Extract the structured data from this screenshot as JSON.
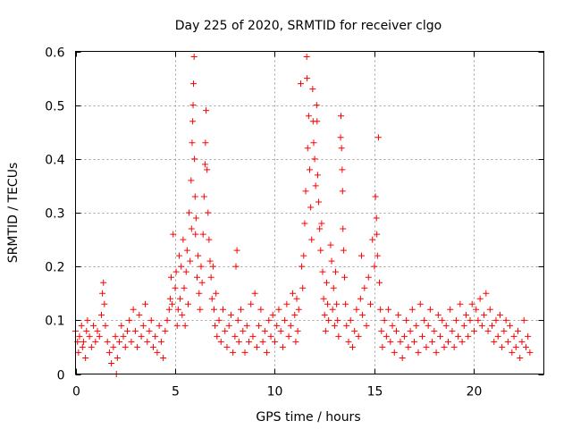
{
  "chart_data": {
    "type": "scatter",
    "title": "Day 225 of 2020, SRMTID for receiver clgo",
    "xlabel": "GPS time / hours",
    "ylabel": "SRMTID / TECUs",
    "xlim": [
      0,
      23.5
    ],
    "ylim": [
      0,
      0.6
    ],
    "x_ticks": [
      0,
      5,
      10,
      15,
      20
    ],
    "x_tick_labels": [
      "0",
      "5",
      "10",
      "15",
      "20"
    ],
    "y_ticks": [
      0,
      0.1,
      0.2,
      0.3,
      0.4,
      0.5,
      0.6
    ],
    "y_tick_labels": [
      "0",
      "0.1",
      "0.2",
      "0.3",
      "0.4",
      "0.5",
      "0.6"
    ],
    "grid": true,
    "marker": "plus",
    "marker_color": "#ff0000",
    "series": [
      {
        "name": "SRMTID",
        "points": [
          [
            0.0,
            0.08
          ],
          [
            0.1,
            0.06
          ],
          [
            0.15,
            0.04
          ],
          [
            0.2,
            0.07
          ],
          [
            0.3,
            0.09
          ],
          [
            0.35,
            0.05
          ],
          [
            0.4,
            0.06
          ],
          [
            0.5,
            0.03
          ],
          [
            0.55,
            0.08
          ],
          [
            0.6,
            0.1
          ],
          [
            0.7,
            0.07
          ],
          [
            0.8,
            0.05
          ],
          [
            0.9,
            0.09
          ],
          [
            1.0,
            0.06
          ],
          [
            1.1,
            0.08
          ],
          [
            1.2,
            0.07
          ],
          [
            1.3,
            0.11
          ],
          [
            1.35,
            0.15
          ],
          [
            1.4,
            0.17
          ],
          [
            1.45,
            0.13
          ],
          [
            1.5,
            0.09
          ],
          [
            1.6,
            0.06
          ],
          [
            1.7,
            0.04
          ],
          [
            1.8,
            0.02
          ],
          [
            1.9,
            0.05
          ],
          [
            2.0,
            0.07
          ],
          [
            2.05,
            0.0
          ],
          [
            2.1,
            0.03
          ],
          [
            2.2,
            0.06
          ],
          [
            2.3,
            0.09
          ],
          [
            2.4,
            0.07
          ],
          [
            2.5,
            0.05
          ],
          [
            2.6,
            0.08
          ],
          [
            2.7,
            0.1
          ],
          [
            2.8,
            0.06
          ],
          [
            2.9,
            0.12
          ],
          [
            3.0,
            0.08
          ],
          [
            3.1,
            0.05
          ],
          [
            3.2,
            0.11
          ],
          [
            3.3,
            0.07
          ],
          [
            3.4,
            0.09
          ],
          [
            3.5,
            0.13
          ],
          [
            3.6,
            0.06
          ],
          [
            3.7,
            0.08
          ],
          [
            3.8,
            0.1
          ],
          [
            3.9,
            0.05
          ],
          [
            4.0,
            0.07
          ],
          [
            4.1,
            0.04
          ],
          [
            4.2,
            0.09
          ],
          [
            4.3,
            0.06
          ],
          [
            4.4,
            0.03
          ],
          [
            4.5,
            0.08
          ],
          [
            4.6,
            0.1
          ],
          [
            4.7,
            0.12
          ],
          [
            4.75,
            0.14
          ],
          [
            4.8,
            0.18
          ],
          [
            4.85,
            0.13
          ],
          [
            4.9,
            0.26
          ],
          [
            5.0,
            0.16
          ],
          [
            5.05,
            0.19
          ],
          [
            5.1,
            0.09
          ],
          [
            5.15,
            0.12
          ],
          [
            5.2,
            0.22
          ],
          [
            5.25,
            0.14
          ],
          [
            5.3,
            0.2
          ],
          [
            5.35,
            0.11
          ],
          [
            5.4,
            0.25
          ],
          [
            5.45,
            0.16
          ],
          [
            5.5,
            0.09
          ],
          [
            5.55,
            0.19
          ],
          [
            5.6,
            0.23
          ],
          [
            5.65,
            0.13
          ],
          [
            5.7,
            0.3
          ],
          [
            5.75,
            0.21
          ],
          [
            5.8,
            0.36
          ],
          [
            5.82,
            0.27
          ],
          [
            5.85,
            0.43
          ],
          [
            5.88,
            0.47
          ],
          [
            5.9,
            0.5
          ],
          [
            5.92,
            0.54
          ],
          [
            5.95,
            0.59
          ],
          [
            5.97,
            0.4
          ],
          [
            6.0,
            0.33
          ],
          [
            6.02,
            0.26
          ],
          [
            6.05,
            0.29
          ],
          [
            6.1,
            0.18
          ],
          [
            6.15,
            0.22
          ],
          [
            6.2,
            0.15
          ],
          [
            6.25,
            0.12
          ],
          [
            6.3,
            0.2
          ],
          [
            6.35,
            0.17
          ],
          [
            6.4,
            0.26
          ],
          [
            6.45,
            0.33
          ],
          [
            6.5,
            0.39
          ],
          [
            6.52,
            0.43
          ],
          [
            6.55,
            0.49
          ],
          [
            6.6,
            0.38
          ],
          [
            6.65,
            0.3
          ],
          [
            6.7,
            0.25
          ],
          [
            6.75,
            0.21
          ],
          [
            6.8,
            0.18
          ],
          [
            6.85,
            0.14
          ],
          [
            6.9,
            0.2
          ],
          [
            6.95,
            0.12
          ],
          [
            7.0,
            0.09
          ],
          [
            7.05,
            0.15
          ],
          [
            7.1,
            0.07
          ],
          [
            7.2,
            0.1
          ],
          [
            7.3,
            0.06
          ],
          [
            7.4,
            0.12
          ],
          [
            7.5,
            0.08
          ],
          [
            7.6,
            0.05
          ],
          [
            7.7,
            0.09
          ],
          [
            7.8,
            0.11
          ],
          [
            7.9,
            0.04
          ],
          [
            8.0,
            0.07
          ],
          [
            8.05,
            0.2
          ],
          [
            8.1,
            0.23
          ],
          [
            8.15,
            0.1
          ],
          [
            8.2,
            0.06
          ],
          [
            8.3,
            0.12
          ],
          [
            8.4,
            0.08
          ],
          [
            8.5,
            0.04
          ],
          [
            8.6,
            0.09
          ],
          [
            8.7,
            0.06
          ],
          [
            8.8,
            0.13
          ],
          [
            8.9,
            0.07
          ],
          [
            9.0,
            0.15
          ],
          [
            9.1,
            0.05
          ],
          [
            9.2,
            0.09
          ],
          [
            9.3,
            0.12
          ],
          [
            9.4,
            0.06
          ],
          [
            9.5,
            0.08
          ],
          [
            9.6,
            0.04
          ],
          [
            9.7,
            0.1
          ],
          [
            9.8,
            0.07
          ],
          [
            9.9,
            0.11
          ],
          [
            10.0,
            0.06
          ],
          [
            10.1,
            0.09
          ],
          [
            10.2,
            0.12
          ],
          [
            10.3,
            0.08
          ],
          [
            10.4,
            0.05
          ],
          [
            10.5,
            0.1
          ],
          [
            10.6,
            0.13
          ],
          [
            10.7,
            0.07
          ],
          [
            10.8,
            0.09
          ],
          [
            10.9,
            0.15
          ],
          [
            11.0,
            0.11
          ],
          [
            11.05,
            0.06
          ],
          [
            11.1,
            0.14
          ],
          [
            11.15,
            0.08
          ],
          [
            11.2,
            0.12
          ],
          [
            11.3,
            0.54
          ],
          [
            11.35,
            0.2
          ],
          [
            11.4,
            0.16
          ],
          [
            11.45,
            0.22
          ],
          [
            11.5,
            0.28
          ],
          [
            11.55,
            0.34
          ],
          [
            11.6,
            0.59
          ],
          [
            11.62,
            0.55
          ],
          [
            11.65,
            0.42
          ],
          [
            11.7,
            0.48
          ],
          [
            11.75,
            0.38
          ],
          [
            11.8,
            0.31
          ],
          [
            11.85,
            0.25
          ],
          [
            11.9,
            0.53
          ],
          [
            11.92,
            0.47
          ],
          [
            11.95,
            0.43
          ],
          [
            12.0,
            0.4
          ],
          [
            12.05,
            0.35
          ],
          [
            12.1,
            0.5
          ],
          [
            12.12,
            0.47
          ],
          [
            12.15,
            0.37
          ],
          [
            12.2,
            0.32
          ],
          [
            12.25,
            0.27
          ],
          [
            12.3,
            0.23
          ],
          [
            12.35,
            0.28
          ],
          [
            12.4,
            0.19
          ],
          [
            12.45,
            0.14
          ],
          [
            12.5,
            0.11
          ],
          [
            12.55,
            0.08
          ],
          [
            12.6,
            0.17
          ],
          [
            12.65,
            0.13
          ],
          [
            12.7,
            0.1
          ],
          [
            12.8,
            0.24
          ],
          [
            12.85,
            0.21
          ],
          [
            12.9,
            0.12
          ],
          [
            12.95,
            0.16
          ],
          [
            13.0,
            0.09
          ],
          [
            13.05,
            0.19
          ],
          [
            13.1,
            0.13
          ],
          [
            13.15,
            0.1
          ],
          [
            13.2,
            0.07
          ],
          [
            13.3,
            0.44
          ],
          [
            13.32,
            0.48
          ],
          [
            13.35,
            0.42
          ],
          [
            13.38,
            0.38
          ],
          [
            13.4,
            0.34
          ],
          [
            13.42,
            0.27
          ],
          [
            13.45,
            0.23
          ],
          [
            13.5,
            0.18
          ],
          [
            13.55,
            0.13
          ],
          [
            13.6,
            0.09
          ],
          [
            13.7,
            0.06
          ],
          [
            13.8,
            0.1
          ],
          [
            13.9,
            0.05
          ],
          [
            14.0,
            0.08
          ],
          [
            14.1,
            0.12
          ],
          [
            14.2,
            0.07
          ],
          [
            14.3,
            0.14
          ],
          [
            14.35,
            0.22
          ],
          [
            14.4,
            0.11
          ],
          [
            14.5,
            0.16
          ],
          [
            14.6,
            0.09
          ],
          [
            14.7,
            0.18
          ],
          [
            14.8,
            0.13
          ],
          [
            14.9,
            0.25
          ],
          [
            15.0,
            0.2
          ],
          [
            15.05,
            0.33
          ],
          [
            15.1,
            0.29
          ],
          [
            15.12,
            0.26
          ],
          [
            15.15,
            0.22
          ],
          [
            15.2,
            0.44
          ],
          [
            15.25,
            0.17
          ],
          [
            15.3,
            0.12
          ],
          [
            15.35,
            0.08
          ],
          [
            15.4,
            0.05
          ],
          [
            15.5,
            0.1
          ],
          [
            15.6,
            0.07
          ],
          [
            15.7,
            0.12
          ],
          [
            15.8,
            0.06
          ],
          [
            15.9,
            0.09
          ],
          [
            16.0,
            0.04
          ],
          [
            16.1,
            0.08
          ],
          [
            16.2,
            0.11
          ],
          [
            16.3,
            0.06
          ],
          [
            16.4,
            0.03
          ],
          [
            16.5,
            0.07
          ],
          [
            16.6,
            0.1
          ],
          [
            16.7,
            0.05
          ],
          [
            16.8,
            0.08
          ],
          [
            16.9,
            0.12
          ],
          [
            17.0,
            0.06
          ],
          [
            17.1,
            0.09
          ],
          [
            17.2,
            0.04
          ],
          [
            17.3,
            0.13
          ],
          [
            17.4,
            0.07
          ],
          [
            17.5,
            0.1
          ],
          [
            17.6,
            0.05
          ],
          [
            17.7,
            0.09
          ],
          [
            17.8,
            0.12
          ],
          [
            17.9,
            0.06
          ],
          [
            18.0,
            0.08
          ],
          [
            18.1,
            0.04
          ],
          [
            18.2,
            0.11
          ],
          [
            18.3,
            0.07
          ],
          [
            18.4,
            0.1
          ],
          [
            18.5,
            0.05
          ],
          [
            18.6,
            0.09
          ],
          [
            18.7,
            0.06
          ],
          [
            18.8,
            0.12
          ],
          [
            18.9,
            0.08
          ],
          [
            19.0,
            0.05
          ],
          [
            19.1,
            0.1
          ],
          [
            19.2,
            0.07
          ],
          [
            19.3,
            0.13
          ],
          [
            19.4,
            0.06
          ],
          [
            19.5,
            0.09
          ],
          [
            19.6,
            0.11
          ],
          [
            19.7,
            0.07
          ],
          [
            19.8,
            0.1
          ],
          [
            19.9,
            0.13
          ],
          [
            20.0,
            0.08
          ],
          [
            20.1,
            0.12
          ],
          [
            20.2,
            0.1
          ],
          [
            20.3,
            0.14
          ],
          [
            20.4,
            0.09
          ],
          [
            20.5,
            0.11
          ],
          [
            20.6,
            0.15
          ],
          [
            20.7,
            0.08
          ],
          [
            20.8,
            0.12
          ],
          [
            20.9,
            0.09
          ],
          [
            21.0,
            0.06
          ],
          [
            21.1,
            0.1
          ],
          [
            21.2,
            0.07
          ],
          [
            21.3,
            0.11
          ],
          [
            21.4,
            0.05
          ],
          [
            21.5,
            0.08
          ],
          [
            21.6,
            0.1
          ],
          [
            21.7,
            0.06
          ],
          [
            21.8,
            0.09
          ],
          [
            21.9,
            0.04
          ],
          [
            22.0,
            0.07
          ],
          [
            22.1,
            0.05
          ],
          [
            22.2,
            0.08
          ],
          [
            22.3,
            0.03
          ],
          [
            22.4,
            0.06
          ],
          [
            22.5,
            0.1
          ],
          [
            22.6,
            0.05
          ],
          [
            22.7,
            0.07
          ],
          [
            22.8,
            0.04
          ]
        ]
      }
    ]
  }
}
